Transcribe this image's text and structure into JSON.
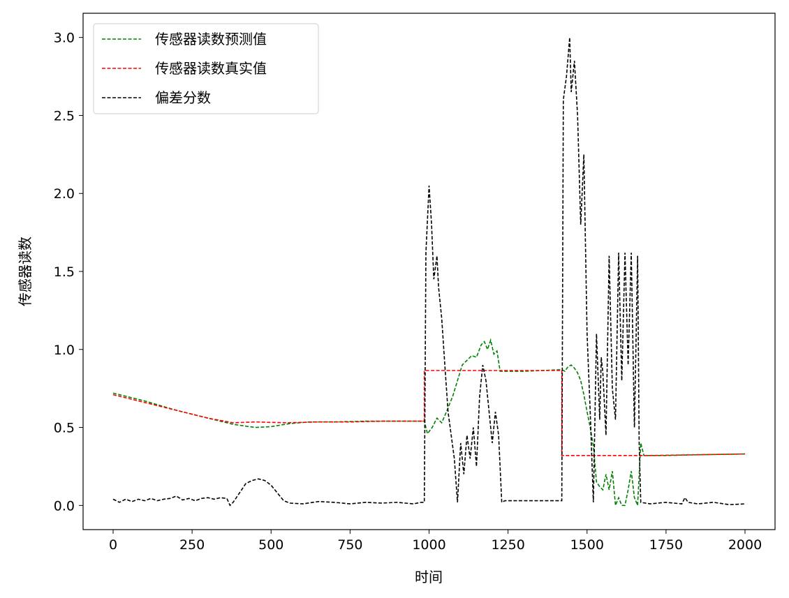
{
  "chart_data": {
    "type": "line",
    "title": "",
    "xlabel": "时间",
    "ylabel": "传感器读数",
    "xlim": [
      -95,
      2095
    ],
    "ylim": [
      -0.155,
      3.155
    ],
    "xticks": [
      0,
      250,
      500,
      750,
      1000,
      1250,
      1500,
      1750,
      2000
    ],
    "xtick_labels": [
      "0",
      "250",
      "500",
      "750",
      "1000",
      "1250",
      "1500",
      "1750",
      "2000"
    ],
    "yticks": [
      0.0,
      0.5,
      1.0,
      1.5,
      2.0,
      2.5,
      3.0
    ],
    "ytick_labels": [
      "0.0",
      "0.5",
      "1.0",
      "1.5",
      "2.0",
      "2.5",
      "3.0"
    ],
    "grid": false,
    "legend": {
      "position": "upper-left",
      "entries": [
        {
          "label": "传感器读数预测值",
          "color": "#008000",
          "dash": "dashed"
        },
        {
          "label": "传感器读数真实值",
          "color": "#ff0000",
          "dash": "dashed"
        },
        {
          "label": "偏差分数",
          "color": "#000000",
          "dash": "dashed"
        }
      ]
    },
    "series": [
      {
        "name": "传感器读数预测值",
        "color": "#008000",
        "points": [
          [
            0,
            0.72
          ],
          [
            100,
            0.67
          ],
          [
            200,
            0.61
          ],
          [
            300,
            0.56
          ],
          [
            380,
            0.52
          ],
          [
            450,
            0.5
          ],
          [
            500,
            0.505
          ],
          [
            560,
            0.525
          ],
          [
            620,
            0.535
          ],
          [
            700,
            0.535
          ],
          [
            800,
            0.54
          ],
          [
            900,
            0.54
          ],
          [
            985,
            0.54
          ],
          [
            995,
            0.46
          ],
          [
            1010,
            0.5
          ],
          [
            1025,
            0.56
          ],
          [
            1040,
            0.53
          ],
          [
            1055,
            0.6
          ],
          [
            1065,
            0.65
          ],
          [
            1075,
            0.7
          ],
          [
            1090,
            0.8
          ],
          [
            1105,
            0.9
          ],
          [
            1120,
            0.93
          ],
          [
            1135,
            0.96
          ],
          [
            1150,
            0.95
          ],
          [
            1165,
            1.03
          ],
          [
            1175,
            1.05
          ],
          [
            1185,
            1.0
          ],
          [
            1195,
            1.06
          ],
          [
            1205,
            0.97
          ],
          [
            1215,
            0.99
          ],
          [
            1225,
            0.86
          ],
          [
            1300,
            0.86
          ],
          [
            1420,
            0.87
          ],
          [
            1430,
            0.86
          ],
          [
            1440,
            0.89
          ],
          [
            1450,
            0.9
          ],
          [
            1460,
            0.88
          ],
          [
            1470,
            0.85
          ],
          [
            1480,
            0.8
          ],
          [
            1490,
            0.71
          ],
          [
            1500,
            0.6
          ],
          [
            1510,
            0.5
          ],
          [
            1520,
            0.38
          ],
          [
            1530,
            0.15
          ],
          [
            1540,
            0.12
          ],
          [
            1550,
            0.1
          ],
          [
            1560,
            0.2
          ],
          [
            1570,
            0.1
          ],
          [
            1580,
            0.22
          ],
          [
            1590,
            0.0
          ],
          [
            1600,
            0.05
          ],
          [
            1610,
            0.0
          ],
          [
            1620,
            0.0
          ],
          [
            1630,
            0.1
          ],
          [
            1640,
            0.22
          ],
          [
            1650,
            0.05
          ],
          [
            1660,
            0.0
          ],
          [
            1670,
            0.4
          ],
          [
            1680,
            0.32
          ],
          [
            1750,
            0.32
          ],
          [
            1850,
            0.325
          ],
          [
            2000,
            0.33
          ]
        ]
      },
      {
        "name": "传感器读数真实值",
        "color": "#ff0000",
        "points": [
          [
            0,
            0.71
          ],
          [
            100,
            0.66
          ],
          [
            200,
            0.61
          ],
          [
            300,
            0.56
          ],
          [
            380,
            0.53
          ],
          [
            450,
            0.535
          ],
          [
            550,
            0.53
          ],
          [
            650,
            0.535
          ],
          [
            750,
            0.535
          ],
          [
            850,
            0.54
          ],
          [
            985,
            0.54
          ],
          [
            985,
            0.865
          ],
          [
            1420,
            0.865
          ],
          [
            1420,
            0.32
          ],
          [
            1550,
            0.32
          ],
          [
            1700,
            0.32
          ],
          [
            1850,
            0.325
          ],
          [
            2000,
            0.33
          ]
        ]
      },
      {
        "name": "偏差分数",
        "color": "#000000",
        "points": [
          [
            0,
            0.04
          ],
          [
            20,
            0.02
          ],
          [
            40,
            0.04
          ],
          [
            60,
            0.025
          ],
          [
            80,
            0.04
          ],
          [
            100,
            0.03
          ],
          [
            120,
            0.045
          ],
          [
            140,
            0.03
          ],
          [
            160,
            0.04
          ],
          [
            180,
            0.045
          ],
          [
            200,
            0.06
          ],
          [
            220,
            0.035
          ],
          [
            240,
            0.045
          ],
          [
            260,
            0.03
          ],
          [
            280,
            0.045
          ],
          [
            300,
            0.05
          ],
          [
            320,
            0.04
          ],
          [
            340,
            0.05
          ],
          [
            360,
            0.045
          ],
          [
            370,
            0.0
          ],
          [
            380,
            0.02
          ],
          [
            400,
            0.08
          ],
          [
            420,
            0.14
          ],
          [
            440,
            0.16
          ],
          [
            460,
            0.17
          ],
          [
            480,
            0.16
          ],
          [
            500,
            0.13
          ],
          [
            520,
            0.08
          ],
          [
            540,
            0.03
          ],
          [
            560,
            0.015
          ],
          [
            600,
            0.01
          ],
          [
            650,
            0.025
          ],
          [
            700,
            0.02
          ],
          [
            750,
            0.01
          ],
          [
            800,
            0.02
          ],
          [
            850,
            0.015
          ],
          [
            900,
            0.02
          ],
          [
            950,
            0.01
          ],
          [
            975,
            0.02
          ],
          [
            985,
            0.02
          ],
          [
            990,
            1.62
          ],
          [
            1000,
            2.05
          ],
          [
            1008,
            1.8
          ],
          [
            1015,
            1.45
          ],
          [
            1025,
            1.6
          ],
          [
            1030,
            1.4
          ],
          [
            1040,
            1.2
          ],
          [
            1050,
            0.9
          ],
          [
            1060,
            0.6
          ],
          [
            1070,
            0.45
          ],
          [
            1080,
            0.3
          ],
          [
            1090,
            0.02
          ],
          [
            1100,
            0.4
          ],
          [
            1110,
            0.2
          ],
          [
            1120,
            0.45
          ],
          [
            1130,
            0.3
          ],
          [
            1140,
            0.5
          ],
          [
            1150,
            0.25
          ],
          [
            1160,
            0.7
          ],
          [
            1170,
            0.9
          ],
          [
            1180,
            0.8
          ],
          [
            1190,
            0.6
          ],
          [
            1200,
            0.4
          ],
          [
            1210,
            0.6
          ],
          [
            1220,
            0.45
          ],
          [
            1230,
            0.02
          ],
          [
            1240,
            0.03
          ],
          [
            1300,
            0.03
          ],
          [
            1420,
            0.03
          ],
          [
            1425,
            2.6
          ],
          [
            1435,
            2.75
          ],
          [
            1445,
            3.0
          ],
          [
            1450,
            2.65
          ],
          [
            1460,
            2.85
          ],
          [
            1470,
            2.5
          ],
          [
            1480,
            1.8
          ],
          [
            1490,
            2.25
          ],
          [
            1500,
            1.1
          ],
          [
            1510,
            0.6
          ],
          [
            1520,
            0.02
          ],
          [
            1530,
            1.1
          ],
          [
            1540,
            0.55
          ],
          [
            1545,
            0.95
          ],
          [
            1550,
            0.85
          ],
          [
            1560,
            0.45
          ],
          [
            1570,
            1.6
          ],
          [
            1580,
            0.75
          ],
          [
            1590,
            0.55
          ],
          [
            1600,
            1.62
          ],
          [
            1610,
            0.8
          ],
          [
            1620,
            1.62
          ],
          [
            1630,
            0.9
          ],
          [
            1640,
            1.62
          ],
          [
            1650,
            0.5
          ],
          [
            1660,
            1.6
          ],
          [
            1665,
            0.4
          ],
          [
            1670,
            0.02
          ],
          [
            1700,
            0.01
          ],
          [
            1750,
            0.02
          ],
          [
            1800,
            0.01
          ],
          [
            1810,
            0.05
          ],
          [
            1820,
            0.02
          ],
          [
            1850,
            0.01
          ],
          [
            1900,
            0.02
          ],
          [
            1950,
            0.005
          ],
          [
            2000,
            0.01
          ]
        ]
      }
    ]
  }
}
